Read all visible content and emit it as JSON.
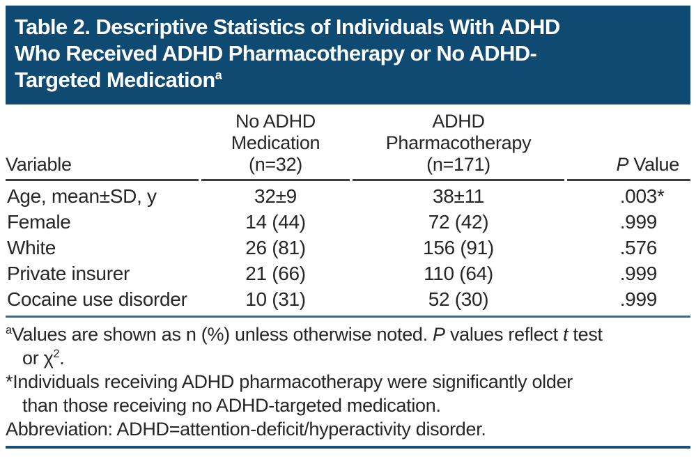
{
  "title": {
    "lines": [
      "Table 2. Descriptive Statistics of Individuals With ADHD",
      "Who Received ADHD Pharmacotherapy or No ADHD-",
      "Targeted Medication"
    ],
    "superscript": "a"
  },
  "table": {
    "columns": {
      "variable": "Variable",
      "no_medication": {
        "lines": [
          "No ADHD",
          "Medication",
          "(n=32)"
        ]
      },
      "pharmacotherapy": {
        "lines": [
          "ADHD",
          "Pharmacotherapy",
          "(n=171)"
        ]
      },
      "p_value": {
        "italic": "P",
        "rest": " Value"
      }
    },
    "rows": [
      {
        "variable": "Age, mean±SD, y",
        "no_medication": "32±9",
        "pharmacotherapy": "38±11",
        "p_value": ".003",
        "p_marker": "*"
      },
      {
        "variable": "Female",
        "no_medication": "14 (44)",
        "pharmacotherapy": "72 (42)",
        "p_value": ".999",
        "p_marker": ""
      },
      {
        "variable": "White",
        "no_medication": "26 (81)",
        "pharmacotherapy": "156 (91)",
        "p_value": ".576",
        "p_marker": ""
      },
      {
        "variable": "Private insurer",
        "no_medication": "21 (66)",
        "pharmacotherapy": "110 (64)",
        "p_value": ".999",
        "p_marker": ""
      },
      {
        "variable": "Cocaine use disorder",
        "no_medication": "10 (31)",
        "pharmacotherapy": "52 (30)",
        "p_value": ".999",
        "p_marker": ""
      }
    ]
  },
  "footnotes": {
    "a": {
      "marker": "a",
      "line1_text": "Values are shown as n (%) unless otherwise noted. ",
      "p_italic": "P",
      "line1_mid": " values reflect ",
      "t_italic": "t",
      "line1_end": " test",
      "line2_start": "or χ",
      "chi_sup": "2",
      "line2_end": "."
    },
    "significance": {
      "line1": "*Individuals receiving ADHD pharmacotherapy were significantly older",
      "line2": "than those receiving no ADHD-targeted medication."
    },
    "abbreviation": "Abbreviation: ADHD=attention-deficit/hyperactivity disorder."
  },
  "colors": {
    "header_bar_bg": "#0E4A72",
    "header_bar_text": "#FFFFFF",
    "column_header_rule": "#3E3E3E",
    "table_end_rule": "#2F6D99",
    "figure_end_rule": "#19507A",
    "body_text": "#262626"
  }
}
